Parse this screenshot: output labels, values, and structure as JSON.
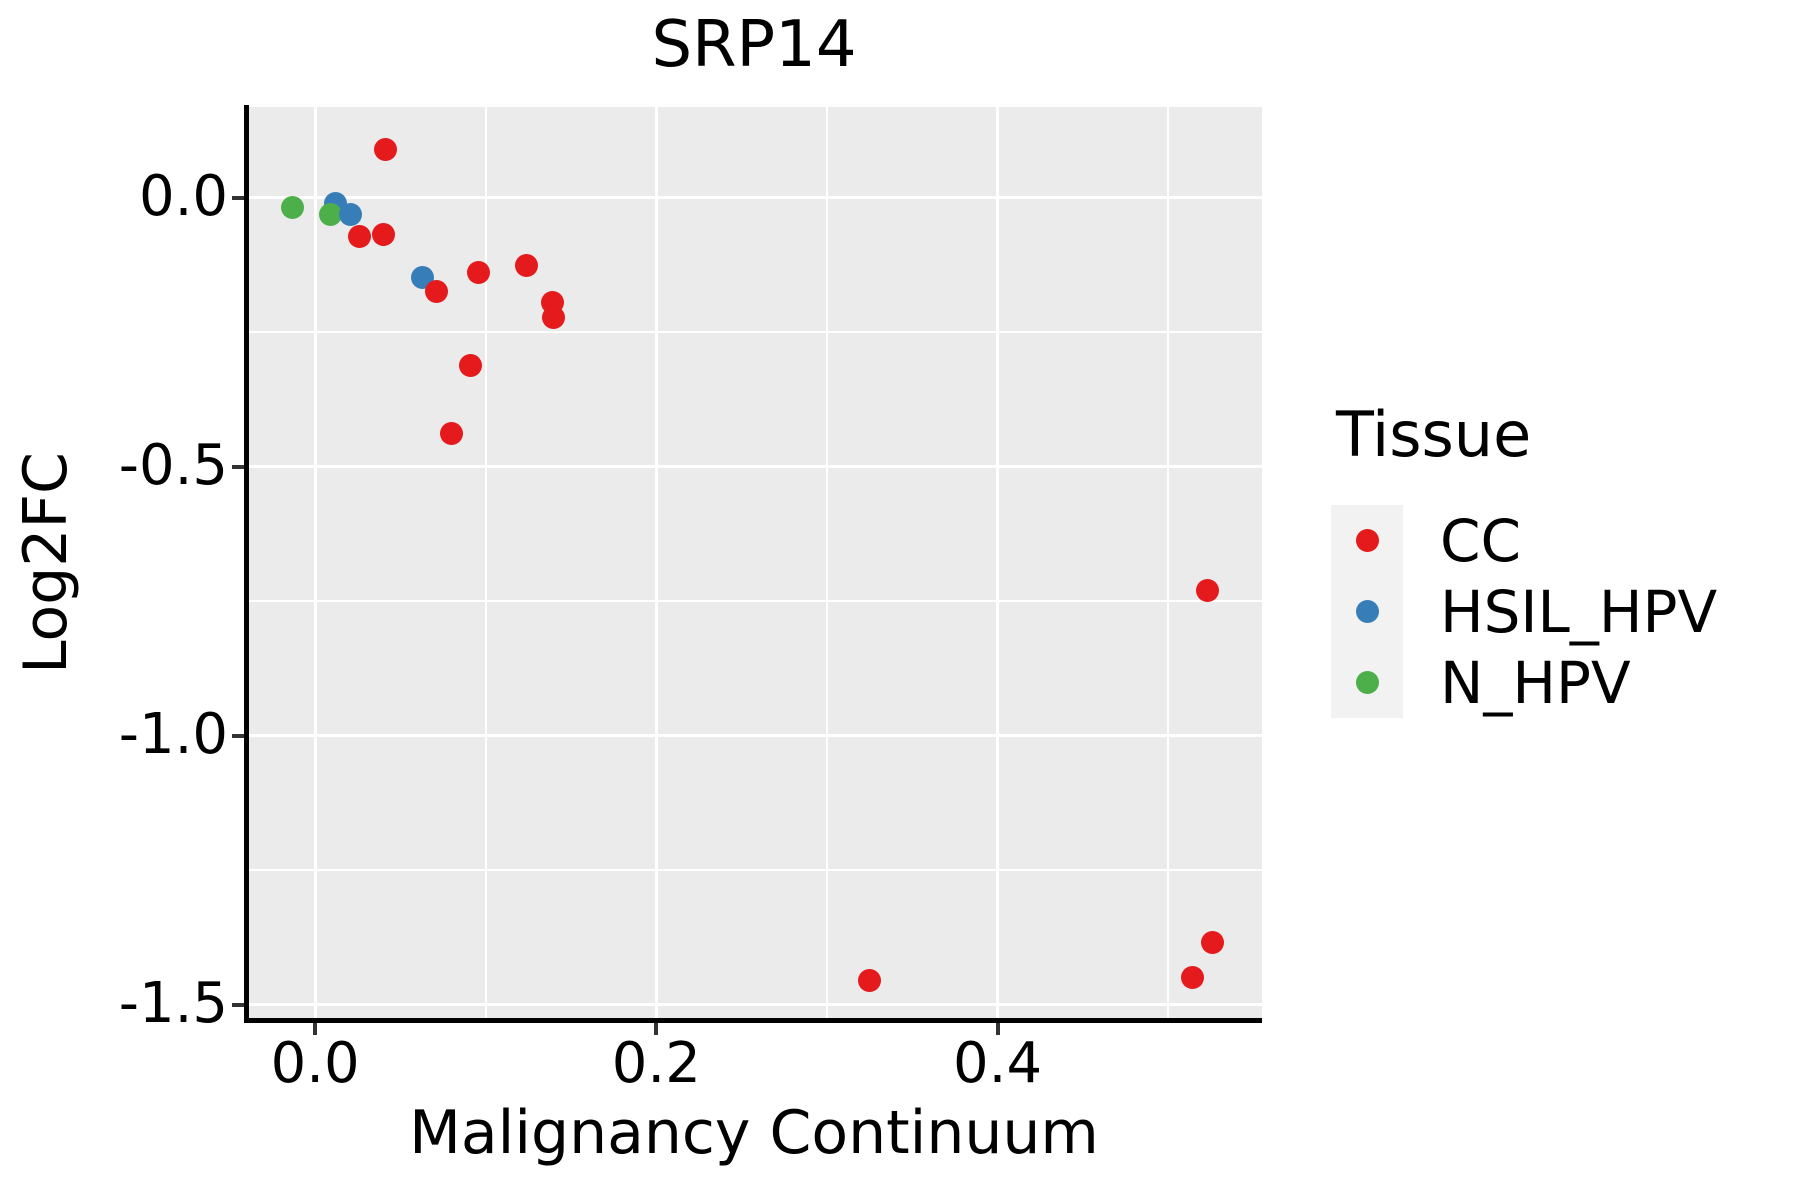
{
  "chart_data": {
    "type": "scatter",
    "title": "SRP14",
    "xlabel": "Malignancy Continuum",
    "ylabel": "Log2FC",
    "legend_title": "Tissue",
    "legend_position": "right",
    "grid": "on",
    "colors": {
      "panel_background": "#EBEBEB",
      "gridline": "#FFFFFF",
      "axis_line": "#000000",
      "tick_mark": "#333333",
      "legend_key_background": "#F2F2F2",
      "text": "#000000"
    },
    "x_axis": {
      "label": "Malignancy Continuum",
      "range": [
        -0.0405,
        0.555
      ],
      "ticks": [
        0.0,
        0.2,
        0.4
      ],
      "tick_labels": [
        "0.0",
        "0.2",
        "0.4"
      ],
      "minor_gridlines": [
        0.1,
        0.3,
        0.5
      ]
    },
    "y_axis": {
      "label": "Log2FC",
      "range": [
        -1.528,
        0.169
      ],
      "ticks": [
        0.0,
        -0.5,
        -1.0,
        -1.5
      ],
      "tick_labels": [
        "0.0",
        "-0.5",
        "-1.0",
        "-1.5"
      ],
      "minor_gridlines": [
        -0.25,
        -0.75,
        -1.25
      ]
    },
    "tissues": [
      {
        "name": "CC",
        "color": "#E41A1C"
      },
      {
        "name": "HSIL_HPV",
        "color": "#377EB8"
      },
      {
        "name": "N_HPV",
        "color": "#4DAF4A"
      }
    ],
    "points": [
      {
        "x": 0.041,
        "y": 0.09,
        "tissue": "CC"
      },
      {
        "x": 0.012,
        "y": -0.01,
        "tissue": "HSIL_HPV"
      },
      {
        "x": -0.013,
        "y": -0.018,
        "tissue": "N_HPV"
      },
      {
        "x": 0.009,
        "y": -0.031,
        "tissue": "N_HPV"
      },
      {
        "x": 0.021,
        "y": -0.031,
        "tissue": "HSIL_HPV"
      },
      {
        "x": 0.026,
        "y": -0.072,
        "tissue": "CC"
      },
      {
        "x": 0.04,
        "y": -0.068,
        "tissue": "CC"
      },
      {
        "x": 0.063,
        "y": -0.147,
        "tissue": "HSIL_HPV"
      },
      {
        "x": 0.071,
        "y": -0.174,
        "tissue": "CC"
      },
      {
        "x": 0.096,
        "y": -0.139,
        "tissue": "CC"
      },
      {
        "x": 0.124,
        "y": -0.125,
        "tissue": "CC"
      },
      {
        "x": 0.139,
        "y": -0.194,
        "tissue": "CC"
      },
      {
        "x": 0.14,
        "y": -0.222,
        "tissue": "CC"
      },
      {
        "x": 0.091,
        "y": -0.312,
        "tissue": "CC"
      },
      {
        "x": 0.08,
        "y": -0.437,
        "tissue": "CC"
      },
      {
        "x": 0.325,
        "y": -1.454,
        "tissue": "CC"
      },
      {
        "x": 0.523,
        "y": -0.729,
        "tissue": "CC"
      },
      {
        "x": 0.526,
        "y": -1.384,
        "tissue": "CC"
      },
      {
        "x": 0.514,
        "y": -1.449,
        "tissue": "CC"
      }
    ]
  }
}
